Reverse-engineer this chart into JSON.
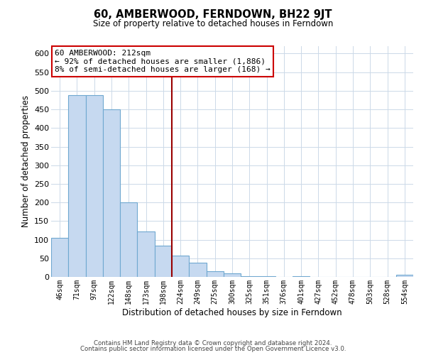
{
  "title": "60, AMBERWOOD, FERNDOWN, BH22 9JT",
  "subtitle": "Size of property relative to detached houses in Ferndown",
  "xlabel": "Distribution of detached houses by size in Ferndown",
  "ylabel": "Number of detached properties",
  "categories": [
    "46sqm",
    "71sqm",
    "97sqm",
    "122sqm",
    "148sqm",
    "173sqm",
    "198sqm",
    "224sqm",
    "249sqm",
    "275sqm",
    "300sqm",
    "325sqm",
    "351sqm",
    "376sqm",
    "401sqm",
    "427sqm",
    "452sqm",
    "478sqm",
    "503sqm",
    "528sqm",
    "554sqm"
  ],
  "values": [
    105,
    488,
    488,
    450,
    200,
    122,
    83,
    58,
    38,
    16,
    9,
    1,
    1,
    0,
    1,
    0,
    0,
    0,
    0,
    0,
    5
  ],
  "bar_color": "#c6d9f0",
  "bar_edge_color": "#6fa8d0",
  "vline_index": 7,
  "vline_color": "#990000",
  "annotation_title": "60 AMBERWOOD: 212sqm",
  "annotation_line1": "← 92% of detached houses are smaller (1,886)",
  "annotation_line2": "8% of semi-detached houses are larger (168) →",
  "annotation_box_color": "#ffffff",
  "annotation_box_edge": "#cc0000",
  "ylim": [
    0,
    620
  ],
  "yticks": [
    0,
    50,
    100,
    150,
    200,
    250,
    300,
    350,
    400,
    450,
    500,
    550,
    600
  ],
  "footer1": "Contains HM Land Registry data © Crown copyright and database right 2024.",
  "footer2": "Contains public sector information licensed under the Open Government Licence v3.0.",
  "bg_color": "#ffffff",
  "grid_color": "#ccd9e8"
}
